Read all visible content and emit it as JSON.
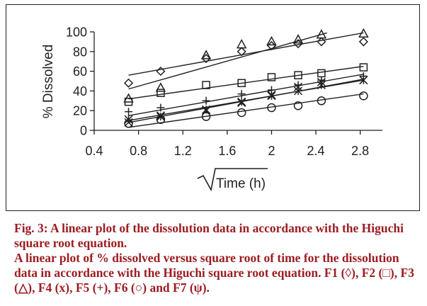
{
  "chart_data": {
    "type": "scatter",
    "xlabel": "Time (h)",
    "xlabel_has_sqrt": true,
    "ylabel": "% Dissolved",
    "xlim": [
      0.4,
      3.0
    ],
    "ylim": [
      0,
      100
    ],
    "xticks": [
      "0.4",
      "0.8",
      "1.2",
      "1.6",
      "2",
      "2.4",
      "2.8"
    ],
    "xtick_values": [
      0.4,
      0.8,
      1.2,
      1.6,
      2.0,
      2.4,
      2.8
    ],
    "yticks": [
      "0",
      "20",
      "40",
      "60",
      "80",
      "100"
    ],
    "ytick_values": [
      0,
      20,
      40,
      60,
      80,
      100
    ],
    "grid": false,
    "legend": "none",
    "series": [
      {
        "marker": "diamond",
        "x": [
          0.71,
          1.0,
          1.41,
          1.73,
          2.0,
          2.24,
          2.45,
          2.83
        ],
        "y": [
          48,
          60,
          73,
          80,
          86,
          88,
          90,
          90
        ],
        "fit": {
          "x": [
            0.71,
            2.83
          ],
          "y": [
            56,
            99
          ]
        }
      },
      {
        "marker": "square",
        "x": [
          0.71,
          1.0,
          1.41,
          1.73,
          2.0,
          2.24,
          2.45,
          2.83
        ],
        "y": [
          29,
          38,
          46,
          48,
          54,
          56,
          58,
          64
        ],
        "fit": {
          "x": [
            0.71,
            2.83
          ],
          "y": [
            32,
            65
          ]
        }
      },
      {
        "marker": "triangle",
        "x": [
          0.71,
          1.0,
          1.41,
          1.73,
          2.0,
          2.24,
          2.45,
          2.83
        ],
        "y": [
          32,
          43,
          76,
          87,
          90,
          92,
          97,
          98
        ],
        "fit": {
          "x": [
            0.71,
            2.5
          ],
          "y": [
            42,
            99
          ]
        }
      },
      {
        "marker": "x",
        "x": [
          0.71,
          1.0,
          1.41,
          1.73,
          2.0,
          2.24,
          2.45,
          2.83
        ],
        "y": [
          11,
          14,
          21,
          29,
          35,
          40,
          46,
          51
        ],
        "fit": {
          "x": [
            0.71,
            2.83
          ],
          "y": [
            8,
            52
          ]
        }
      },
      {
        "marker": "plus",
        "x": [
          0.71,
          1.0,
          1.41,
          1.73,
          2.0,
          2.24,
          2.45,
          2.83
        ],
        "y": [
          19,
          23,
          30,
          37,
          41,
          46,
          51,
          55
        ],
        "fit": {
          "x": [
            0.71,
            2.83
          ],
          "y": [
            15,
            57
          ]
        }
      },
      {
        "marker": "circle",
        "x": [
          0.71,
          1.0,
          1.41,
          1.73,
          2.0,
          2.24,
          2.45,
          2.83
        ],
        "y": [
          7,
          11,
          14,
          18,
          23,
          25,
          30,
          35
        ],
        "fit": {
          "x": [
            0.71,
            2.83
          ],
          "y": [
            3,
            37
          ]
        }
      },
      {
        "marker": "psi",
        "x": [
          0.71,
          1.0,
          1.41,
          1.73,
          2.0,
          2.24,
          2.45,
          2.83
        ],
        "y": [
          8,
          15,
          20,
          28,
          36,
          44,
          49,
          51
        ],
        "fit": {
          "x": [
            0.71,
            2.83
          ],
          "y": [
            10,
            51
          ]
        }
      }
    ]
  },
  "caption": {
    "title": "Fig. 3: A linear plot of the dissolution data in accordance with the Higuchi square root equation.",
    "body": "A linear plot of % dissolved versus square root of time for the dissolution data in accordance with the Higuchi square root equation. F1 (◊), F2 (□), F3 (△), F4 (x), F5 (+), F6 (○) and F7 (ψ)."
  }
}
